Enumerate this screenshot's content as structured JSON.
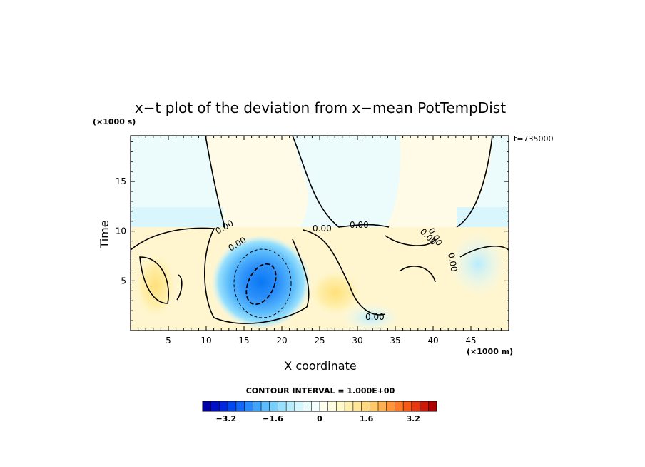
{
  "chart_data": {
    "type": "contour",
    "title": "x−t plot of the deviation from x−mean PotTempDist",
    "xlabel": "X coordinate",
    "ylabel": "Time",
    "x_unit": "(×1000 m)",
    "y_unit": "(×1000 s)",
    "xlim": [
      0,
      50
    ],
    "ylim": [
      0,
      19.6
    ],
    "xticks": [
      5,
      10,
      15,
      20,
      25,
      30,
      35,
      40,
      45
    ],
    "yticks": [
      5,
      10,
      15
    ],
    "time_stamp": "t=735000",
    "contour_interval_text": "CONTOUR INTERVAL = 1.000E+00",
    "contour_labels": [
      "0.00",
      "0.00",
      "0.00",
      "0.00",
      "0.00",
      "0.00",
      "0.00",
      "0.00"
    ],
    "anomaly_center": {
      "x": 17.5,
      "y": 4.6,
      "min_value": -3.0
    },
    "colorbar": {
      "min": -4.0,
      "max": 4.0,
      "step": 0.4,
      "tick_values": [
        -3.2,
        -1.6,
        0,
        1.6,
        3.2
      ],
      "tick_labels": [
        "−3.2",
        "−1.6",
        "0",
        "1.6",
        "3.2"
      ],
      "colors": [
        "#0000a8",
        "#0010c8",
        "#0028e0",
        "#0048f0",
        "#1268f8",
        "#2888fc",
        "#40a4fc",
        "#5cbcfc",
        "#78d0fc",
        "#98e0fc",
        "#b8ecfc",
        "#d4f6fc",
        "#e8fcfc",
        "#f4fefe",
        "#fffff0",
        "#fffce0",
        "#fff8c8",
        "#fff0b0",
        "#ffe698",
        "#ffd880",
        "#ffc868",
        "#ffb050",
        "#ff9438",
        "#ff7828",
        "#f85818",
        "#e83810",
        "#d01808",
        "#b00000"
      ]
    }
  }
}
